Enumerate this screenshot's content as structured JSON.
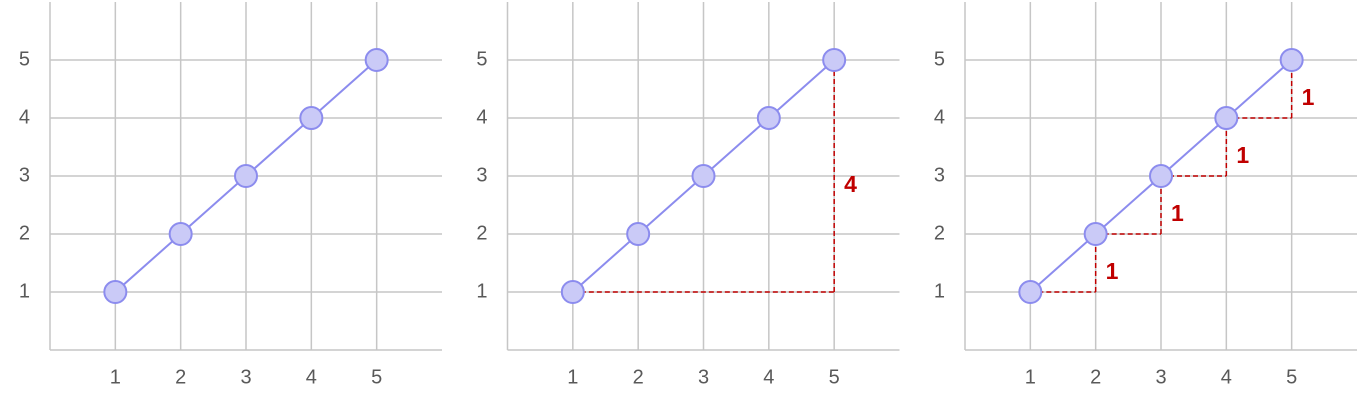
{
  "chart_data": [
    {
      "type": "line",
      "x": [
        1,
        2,
        3,
        4,
        5
      ],
      "series": [
        {
          "values": [
            1,
            2,
            3,
            4,
            5
          ],
          "color": "#8c8cee"
        }
      ],
      "xlim": [
        0,
        6
      ],
      "ylim": [
        0,
        6
      ],
      "xticks": [
        1,
        2,
        3,
        4,
        5
      ],
      "yticks": [
        1,
        2,
        3,
        4,
        5
      ],
      "grid": true,
      "rises": []
    },
    {
      "type": "line",
      "x": [
        1,
        2,
        3,
        4,
        5
      ],
      "series": [
        {
          "values": [
            1,
            2,
            3,
            4,
            5
          ],
          "color": "#8c8cee"
        }
      ],
      "xlim": [
        0,
        6
      ],
      "ylim": [
        0,
        6
      ],
      "xticks": [
        1,
        2,
        3,
        4,
        5
      ],
      "yticks": [
        1,
        2,
        3,
        4,
        5
      ],
      "grid": true,
      "rises": [
        {
          "from": [
            1,
            1
          ],
          "to": [
            5,
            5
          ],
          "label": "4",
          "color": "#c00000"
        }
      ]
    },
    {
      "type": "line",
      "x": [
        1,
        2,
        3,
        4,
        5
      ],
      "series": [
        {
          "values": [
            1,
            2,
            3,
            4,
            5
          ],
          "color": "#8c8cee"
        }
      ],
      "xlim": [
        0,
        6
      ],
      "ylim": [
        0,
        6
      ],
      "xticks": [
        1,
        2,
        3,
        4,
        5
      ],
      "yticks": [
        1,
        2,
        3,
        4,
        5
      ],
      "grid": true,
      "rises": [
        {
          "from": [
            1,
            1
          ],
          "to": [
            2,
            2
          ],
          "label": "1",
          "color": "#c00000"
        },
        {
          "from": [
            2,
            2
          ],
          "to": [
            3,
            3
          ],
          "label": "1",
          "color": "#c00000"
        },
        {
          "from": [
            3,
            3
          ],
          "to": [
            4,
            4
          ],
          "label": "1",
          "color": "#c00000"
        },
        {
          "from": [
            4,
            4
          ],
          "to": [
            5,
            5
          ],
          "label": "1",
          "color": "#c00000"
        }
      ]
    }
  ]
}
